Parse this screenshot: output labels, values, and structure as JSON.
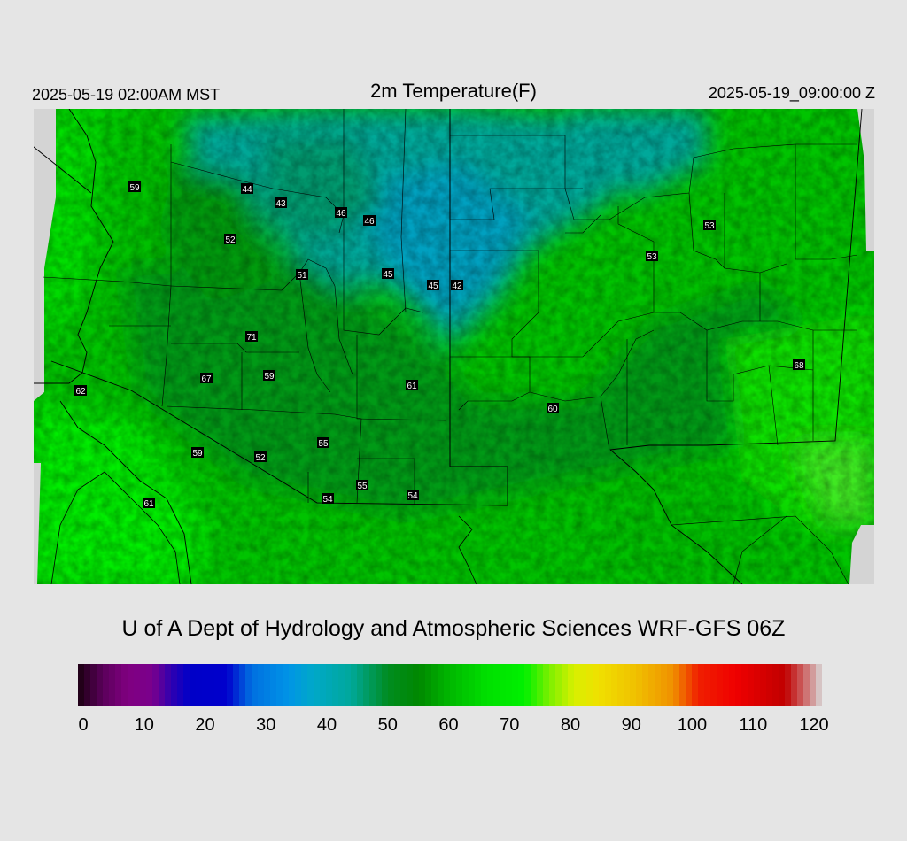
{
  "header": {
    "local_time": "2025-05-19 02:00AM MST",
    "title": "2m Temperature(F)",
    "valid_time": "2025-05-19_09:00:00 Z"
  },
  "credit": "U of A Dept of Hydrology and Atmospheric Sciences WRF-GFS 06Z",
  "colorbar": {
    "ticks": [
      "0",
      "10",
      "20",
      "30",
      "40",
      "50",
      "60",
      "70",
      "80",
      "90",
      "100",
      "110",
      "120"
    ],
    "stops": [
      {
        "v": 0,
        "c": "#1a0010"
      },
      {
        "v": 4,
        "c": "#5a005a"
      },
      {
        "v": 8,
        "c": "#800080"
      },
      {
        "v": 12,
        "c": "#7a008c"
      },
      {
        "v": 15,
        "c": "#3000b0"
      },
      {
        "v": 18,
        "c": "#0000c8"
      },
      {
        "v": 24,
        "c": "#0000cc"
      },
      {
        "v": 28,
        "c": "#0070e0"
      },
      {
        "v": 34,
        "c": "#0094e6"
      },
      {
        "v": 38,
        "c": "#00a8c8"
      },
      {
        "v": 44,
        "c": "#00a89a"
      },
      {
        "v": 50,
        "c": "#008c20"
      },
      {
        "v": 55,
        "c": "#008800"
      },
      {
        "v": 60,
        "c": "#00b800"
      },
      {
        "v": 66,
        "c": "#00e000"
      },
      {
        "v": 72,
        "c": "#00f000"
      },
      {
        "v": 76,
        "c": "#7af000"
      },
      {
        "v": 80,
        "c": "#d8f000"
      },
      {
        "v": 84,
        "c": "#f0e000"
      },
      {
        "v": 90,
        "c": "#f0c000"
      },
      {
        "v": 96,
        "c": "#f09000"
      },
      {
        "v": 100,
        "c": "#f02000"
      },
      {
        "v": 106,
        "c": "#f00000"
      },
      {
        "v": 110,
        "c": "#d80000"
      },
      {
        "v": 114,
        "c": "#c00000"
      },
      {
        "v": 117,
        "c": "#cc6060"
      },
      {
        "v": 120,
        "c": "#d8d8d8"
      }
    ]
  },
  "stations": [
    {
      "label": "59",
      "temp": 59
    },
    {
      "label": "44",
      "temp": 44
    },
    {
      "label": "43",
      "temp": 43
    },
    {
      "label": "46",
      "temp": 46
    },
    {
      "label": "46",
      "temp": 46
    },
    {
      "label": "52",
      "temp": 52
    },
    {
      "label": "51",
      "temp": 51
    },
    {
      "label": "45",
      "temp": 45
    },
    {
      "label": "45",
      "temp": 45
    },
    {
      "label": "42",
      "temp": 42
    },
    {
      "label": "53",
      "temp": 53
    },
    {
      "label": "53",
      "temp": 53
    },
    {
      "label": "71",
      "temp": 71
    },
    {
      "label": "67",
      "temp": 67
    },
    {
      "label": "59",
      "temp": 59
    },
    {
      "label": "61",
      "temp": 61
    },
    {
      "label": "62",
      "temp": 62
    },
    {
      "label": "60",
      "temp": 60
    },
    {
      "label": "68",
      "temp": 68
    },
    {
      "label": "55",
      "temp": 55
    },
    {
      "label": "59",
      "temp": 59
    },
    {
      "label": "52",
      "temp": 52
    },
    {
      "label": "55",
      "temp": 55
    },
    {
      "label": "54",
      "temp": 54
    },
    {
      "label": "54",
      "temp": 54
    },
    {
      "label": "61",
      "temp": 61
    }
  ]
}
